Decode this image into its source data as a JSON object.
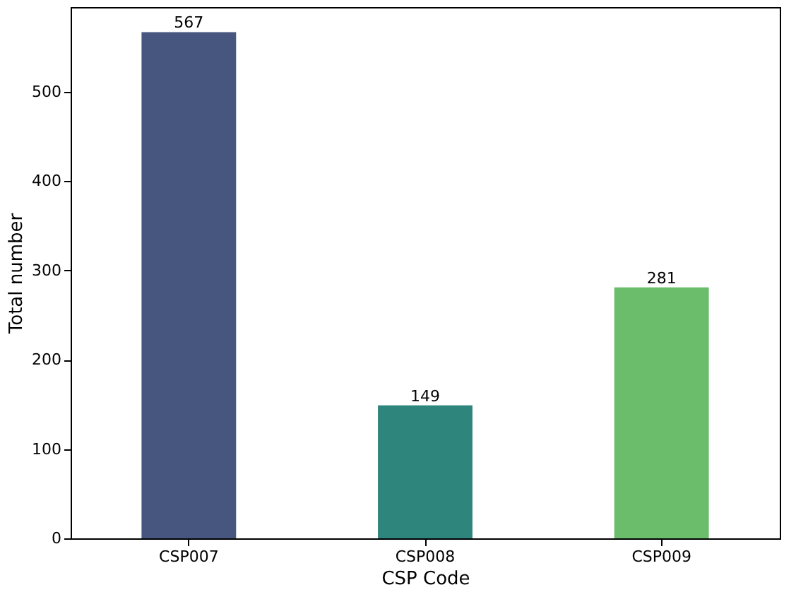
{
  "chart_data": {
    "type": "bar",
    "xlabel": "CSP Code",
    "ylabel": "Total number",
    "categories": [
      "CSP007",
      "CSP008",
      "CSP009"
    ],
    "values": [
      567,
      149,
      281
    ],
    "colors": [
      "#46567f",
      "#2e857c",
      "#6cbd6b"
    ],
    "ylim": [
      0,
      595
    ],
    "yticks": [
      0,
      100,
      200,
      300,
      400,
      500
    ],
    "data_labels": true,
    "grid": false
  }
}
